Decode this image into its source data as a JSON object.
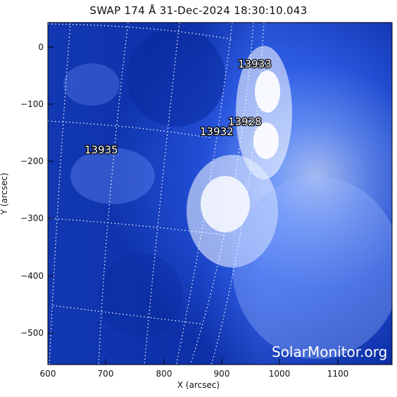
{
  "header": {
    "title": "SWAP 174 Å 31-Dec-2024 18:30:10.043"
  },
  "axes": {
    "x_label": "X (arcsec)",
    "y_label": "Y (arcsec)",
    "x_ticks": [
      "600",
      "700",
      "800",
      "900",
      "1000",
      "1100"
    ],
    "y_ticks": [
      "0",
      "−100",
      "−200",
      "−300",
      "−400",
      "−500"
    ]
  },
  "active_regions": [
    "13933",
    "13928",
    "13932",
    "13935"
  ],
  "watermark": "SolarMonitor.org",
  "colors": {
    "sky": "#0a2a9e",
    "limb": "#ffffff",
    "grid": "#ffffff"
  }
}
